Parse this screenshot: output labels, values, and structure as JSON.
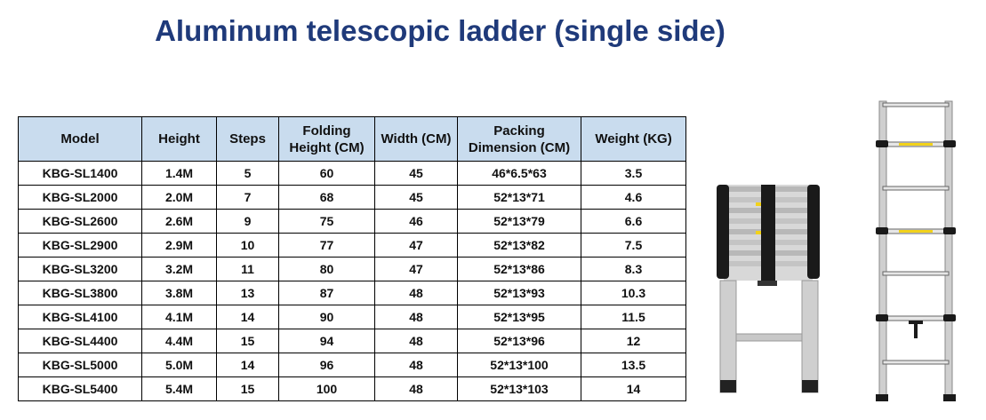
{
  "title": "Aluminum telescopic ladder (single side)",
  "table": {
    "headers": {
      "model": "Model",
      "height": "Height",
      "steps": "Steps",
      "folding_line1": "Folding",
      "folding_line2": "Height (CM)",
      "width": "Width (CM)",
      "packing_line1": "Packing",
      "packing_line2": "Dimension (CM)",
      "weight": "Weight (KG)"
    },
    "rows": [
      [
        "KBG-SL1400",
        "1.4M",
        "5",
        "60",
        "45",
        "46*6.5*63",
        "3.5"
      ],
      [
        "KBG-SL2000",
        "2.0M",
        "7",
        "68",
        "45",
        "52*13*71",
        "4.6"
      ],
      [
        "KBG-SL2600",
        "2.6M",
        "9",
        "75",
        "46",
        "52*13*79",
        "6.6"
      ],
      [
        "KBG-SL2900",
        "2.9M",
        "10",
        "77",
        "47",
        "52*13*82",
        "7.5"
      ],
      [
        "KBG-SL3200",
        "3.2M",
        "11",
        "80",
        "47",
        "52*13*86",
        "8.3"
      ],
      [
        "KBG-SL3800",
        "3.8M",
        "13",
        "87",
        "48",
        "52*13*93",
        "10.3"
      ],
      [
        "KBG-SL4100",
        "4.1M",
        "14",
        "90",
        "48",
        "52*13*95",
        "11.5"
      ],
      [
        "KBG-SL4400",
        "4.4M",
        "15",
        "94",
        "48",
        "52*13*96",
        "12"
      ],
      [
        "KBG-SL5000",
        "5.0M",
        "14",
        "96",
        "48",
        "52*13*100",
        "13.5"
      ],
      [
        "KBG-SL5400",
        "5.4M",
        "15",
        "100",
        "48",
        "52*13*103",
        "14"
      ]
    ]
  },
  "images": {
    "folded": "folded-ladder-photo",
    "extended": "extended-ladder-photo"
  },
  "colors": {
    "title": "#1f3a7a",
    "header_bg": "#c9dcee",
    "border": "#000000"
  }
}
